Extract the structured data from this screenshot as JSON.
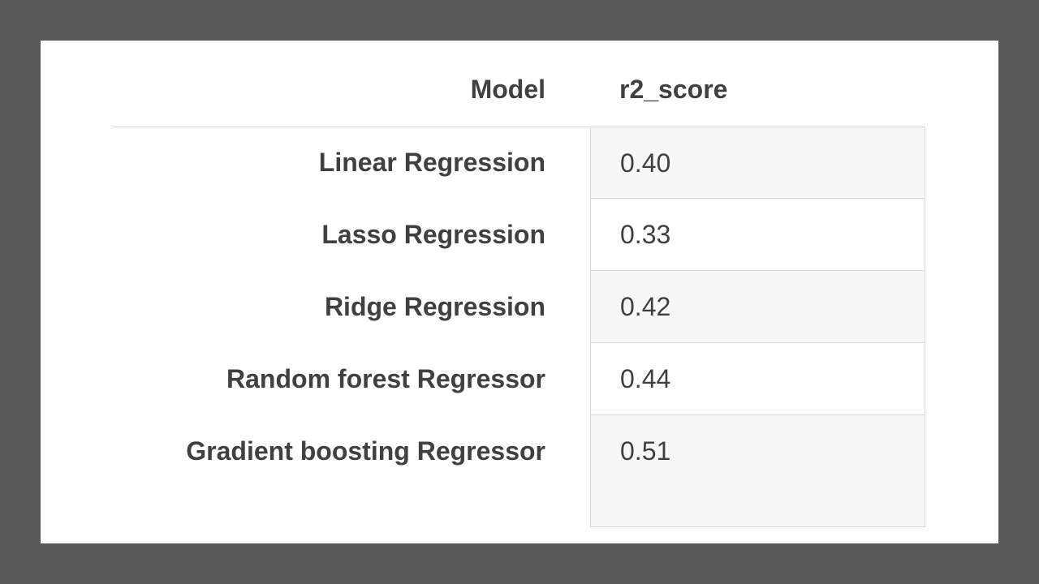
{
  "table": {
    "headers": {
      "model": "Model",
      "score": "r2_score"
    },
    "rows": [
      {
        "model": "Linear Regression",
        "score": "0.40"
      },
      {
        "model": "Lasso Regression",
        "score": "0.33"
      },
      {
        "model": "Ridge Regression",
        "score": "0.42"
      },
      {
        "model": "Random forest Regressor",
        "score": "0.44"
      },
      {
        "model": "Gradient boosting Regressor",
        "score": "0.51"
      }
    ]
  },
  "colors": {
    "frame": "#595959",
    "slide": "#ffffff",
    "text": "#404040",
    "rule": "#d9d9d9",
    "shaded_cell": "#f7f7f7"
  }
}
